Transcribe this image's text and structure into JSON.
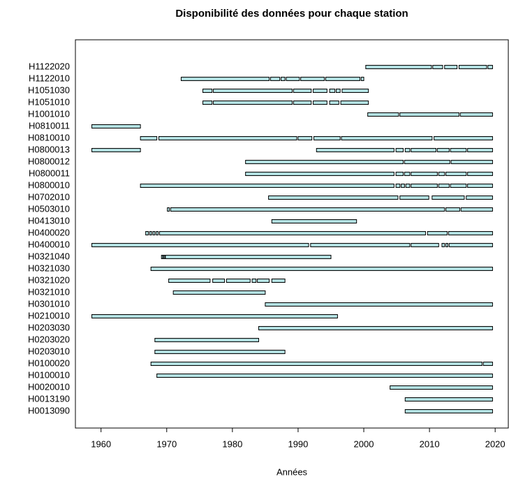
{
  "chart_data": {
    "type": "timeline",
    "title": "Disponibilité des données pour chaque station",
    "xlabel": "Années",
    "color": "#b2dfe0",
    "xlim": [
      1956.1,
      2022.0
    ],
    "xticks": [
      1960,
      1970,
      1980,
      1990,
      2000,
      2010,
      2020
    ],
    "categories": [
      "H1122020",
      "H1122010",
      "H1051030",
      "H1051010",
      "H1001010",
      "H0810011",
      "H0810010",
      "H0800013",
      "H0800012",
      "H0800011",
      "H0800010",
      "H0702010",
      "H0503010",
      "H0413010",
      "H0400020",
      "H0400010",
      "H0321040",
      "H0321030",
      "H0321020",
      "H0321010",
      "H0301010",
      "H0210010",
      "H0203030",
      "H0203020",
      "H0203010",
      "H0100020",
      "H0100010",
      "H0020010",
      "H0013190",
      "H0013090"
    ],
    "segments": [
      [
        [
          2000.3,
          2010.3
        ],
        [
          2010.5,
          2012.0
        ],
        [
          2012.3,
          2014.2
        ],
        [
          2014.5,
          2018.7
        ],
        [
          2018.9,
          2019.6
        ]
      ],
      [
        [
          1972.2,
          1985.6
        ],
        [
          1985.8,
          1987.2
        ],
        [
          1987.4,
          1988.0
        ],
        [
          1988.2,
          1990.2
        ],
        [
          1990.4,
          1994.0
        ],
        [
          1994.2,
          1999.4
        ],
        [
          1999.6,
          2000.0
        ]
      ],
      [
        [
          1975.5,
          1976.9
        ],
        [
          1977.1,
          1989.1
        ],
        [
          1989.3,
          1992.0
        ],
        [
          1992.3,
          1994.4
        ],
        [
          1994.8,
          1995.6
        ],
        [
          1995.8,
          1996.4
        ],
        [
          1996.7,
          2000.7
        ]
      ],
      [
        [
          1975.5,
          1976.9
        ],
        [
          1977.1,
          1989.1
        ],
        [
          1989.3,
          1992.0
        ],
        [
          1992.3,
          1994.4
        ],
        [
          1994.8,
          1996.2
        ],
        [
          1996.5,
          2000.7
        ]
      ],
      [
        [
          2000.6,
          2005.3
        ],
        [
          2005.5,
          2014.5
        ],
        [
          2014.7,
          2019.6
        ]
      ],
      [
        [
          1958.6,
          1966.0
        ]
      ],
      [
        [
          1966.0,
          1968.5
        ],
        [
          1968.8,
          1989.8
        ],
        [
          1990.0,
          1992.1
        ],
        [
          1992.4,
          1996.4
        ],
        [
          1996.6,
          2010.4
        ],
        [
          2010.7,
          2019.6
        ]
      ],
      [
        [
          1958.6,
          1966.0
        ],
        [
          1992.8,
          2004.6
        ],
        [
          2004.9,
          2006.0
        ],
        [
          2006.3,
          2007.0
        ],
        [
          2007.2,
          2011.0
        ],
        [
          2011.2,
          2013.0
        ],
        [
          2013.2,
          2015.6
        ],
        [
          2015.8,
          2019.6
        ]
      ],
      [
        [
          1982.0,
          2006.0
        ],
        [
          2006.2,
          2013.1
        ],
        [
          2013.3,
          2019.6
        ]
      ],
      [
        [
          1982.0,
          2004.6
        ],
        [
          2004.9,
          2006.0
        ],
        [
          2006.2,
          2007.0
        ],
        [
          2007.2,
          2011.2
        ],
        [
          2011.4,
          2012.3
        ],
        [
          2012.5,
          2015.6
        ],
        [
          2015.8,
          2019.6
        ]
      ],
      [
        [
          1966.0,
          2004.6
        ],
        [
          2004.9,
          2005.5
        ],
        [
          2005.7,
          2006.2
        ],
        [
          2006.4,
          2007.0
        ],
        [
          2007.2,
          2011.2
        ],
        [
          2011.4,
          2013.0
        ],
        [
          2013.2,
          2015.6
        ],
        [
          2015.8,
          2019.6
        ]
      ],
      [
        [
          1985.5,
          2005.2
        ],
        [
          2005.5,
          2009.9
        ],
        [
          2010.4,
          2015.3
        ],
        [
          2015.6,
          2019.6
        ]
      ],
      [
        [
          1970.1,
          1970.4
        ],
        [
          1970.6,
          2012.3
        ],
        [
          2012.5,
          2014.6
        ],
        [
          2014.8,
          2019.6
        ]
      ],
      [
        [
          1986.0,
          1998.9
        ]
      ],
      [
        [
          1966.8,
          1967.2
        ],
        [
          1967.4,
          1967.7
        ],
        [
          1967.9,
          1968.2
        ],
        [
          1968.4,
          1968.7
        ],
        [
          1968.9,
          2009.4
        ],
        [
          2009.7,
          2012.7
        ],
        [
          2012.9,
          2019.6
        ]
      ],
      [
        [
          1958.6,
          1991.6
        ],
        [
          1991.9,
          2007.0
        ],
        [
          2007.2,
          2011.4
        ],
        [
          2011.9,
          2012.3
        ],
        [
          2012.5,
          2012.8
        ],
        [
          2013.0,
          2019.6
        ]
      ],
      [
        [
          1969.2,
          1969.4
        ],
        [
          1969.5,
          1969.7
        ],
        [
          1969.8,
          1995.0
        ]
      ],
      [
        [
          1967.6,
          2019.6
        ]
      ],
      [
        [
          1970.3,
          1976.6
        ],
        [
          1977.0,
          1978.8
        ],
        [
          1979.1,
          1982.7
        ],
        [
          1983.0,
          1983.6
        ],
        [
          1983.8,
          1985.6
        ],
        [
          1986.0,
          1988.0
        ]
      ],
      [
        [
          1971.0,
          1985.0
        ]
      ],
      [
        [
          1985.0,
          2019.6
        ]
      ],
      [
        [
          1958.6,
          1996.0
        ]
      ],
      [
        [
          1984.0,
          2019.6
        ]
      ],
      [
        [
          1968.2,
          1984.0
        ]
      ],
      [
        [
          1968.2,
          1988.0
        ]
      ],
      [
        [
          1967.6,
          2018.0
        ],
        [
          2018.2,
          2019.6
        ]
      ],
      [
        [
          1968.5,
          2019.6
        ]
      ],
      [
        [
          2004.0,
          2019.6
        ]
      ],
      [
        [
          2006.3,
          2019.6
        ]
      ],
      [
        [
          2006.3,
          2019.6
        ]
      ]
    ]
  }
}
